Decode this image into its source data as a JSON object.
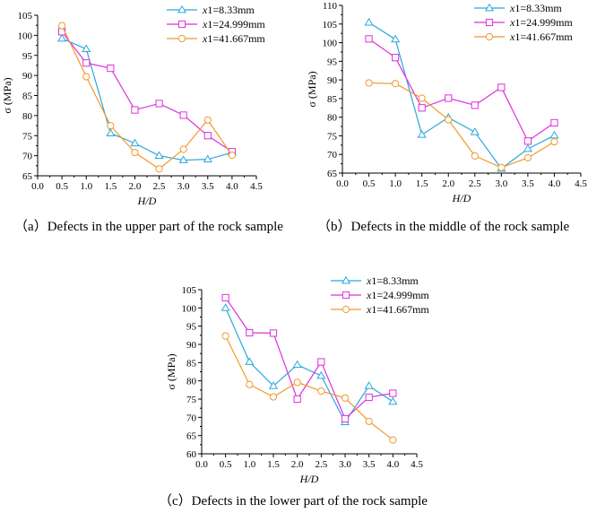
{
  "colors": {
    "s1": "#2aa8dc",
    "s2": "#de2fde",
    "s3": "#f2982b",
    "axis": "#000000"
  },
  "legend": {
    "var": "x",
    "labels": [
      "1=8.33mm",
      "1=24.999mm",
      "1=41.667mm"
    ]
  },
  "chart_data": [
    {
      "type": "line",
      "xlabel": "H/D",
      "ylabel": "σ (MPa)",
      "xlim": [
        0.0,
        4.5
      ],
      "ylim": [
        65,
        105
      ],
      "xticks": [
        "0.0",
        "0.5",
        "1.0",
        "1.5",
        "2.0",
        "2.5",
        "3.0",
        "3.5",
        "4.0",
        "4.5"
      ],
      "yticks": [
        "65",
        "70",
        "75",
        "80",
        "85",
        "90",
        "95",
        "100",
        "105"
      ],
      "x": [
        0.5,
        1.0,
        1.5,
        2.0,
        2.5,
        3.0,
        3.5,
        4.0
      ],
      "series": [
        {
          "name": "x1=8.33mm",
          "marker": "triangle",
          "values": [
            99.2,
            96.6,
            75.6,
            73.1,
            70.0,
            68.9,
            69.1,
            70.8
          ]
        },
        {
          "name": "x1=24.999mm",
          "marker": "square",
          "values": [
            100.9,
            93.1,
            91.8,
            81.4,
            83.0,
            80.1,
            75.0,
            71.0
          ]
        },
        {
          "name": "x1=41.667mm",
          "marker": "circle",
          "values": [
            102.4,
            89.7,
            77.5,
            70.8,
            66.7,
            71.6,
            78.9,
            70.1
          ]
        }
      ],
      "caption": "（a）Defects in the upper part of the rock sample"
    },
    {
      "type": "line",
      "xlabel": "H/D",
      "ylabel": "σ (MPa)",
      "xlim": [
        0.0,
        4.5
      ],
      "ylim": [
        65,
        110
      ],
      "xticks": [
        "0.0",
        "0.5",
        "1.0",
        "1.5",
        "2.0",
        "2.5",
        "3.0",
        "3.5",
        "4.0",
        "4.5"
      ],
      "yticks": [
        "65",
        "70",
        "75",
        "80",
        "85",
        "90",
        "95",
        "100",
        "105",
        "110"
      ],
      "x": [
        0.5,
        1.0,
        1.5,
        2.0,
        2.5,
        3.0,
        3.5,
        4.0
      ],
      "series": [
        {
          "name": "x1=8.33mm",
          "marker": "triangle",
          "values": [
            105.4,
            100.9,
            75.3,
            79.9,
            76.0,
            66.2,
            71.5,
            75.1
          ]
        },
        {
          "name": "x1=24.999mm",
          "marker": "square",
          "values": [
            101.0,
            96.0,
            82.5,
            85.1,
            83.2,
            88.0,
            73.6,
            78.5
          ]
        },
        {
          "name": "x1=41.667mm",
          "marker": "circle",
          "values": [
            89.2,
            89.0,
            85.1,
            79.3,
            69.6,
            66.5,
            69.1,
            73.4
          ]
        }
      ],
      "caption": "（b）Defects in the middle of the rock sample"
    },
    {
      "type": "line",
      "xlabel": "H/D",
      "ylabel": "σ (MPa)",
      "xlim": [
        0.0,
        4.5
      ],
      "ylim": [
        60,
        105
      ],
      "xticks": [
        "0.0",
        "0.5",
        "1.0",
        "1.5",
        "2.0",
        "2.5",
        "3.0",
        "3.5",
        "4.0",
        "4.5"
      ],
      "yticks": [
        "60",
        "65",
        "70",
        "75",
        "80",
        "85",
        "90",
        "95",
        "100",
        "105"
      ],
      "x": [
        0.5,
        1.0,
        1.5,
        2.0,
        2.5,
        3.0,
        3.5,
        4.0
      ],
      "series": [
        {
          "name": "x1=8.33mm",
          "marker": "triangle",
          "values": [
            100.0,
            85.2,
            78.6,
            84.4,
            81.4,
            68.7,
            78.6,
            74.3
          ]
        },
        {
          "name": "x1=24.999mm",
          "marker": "square",
          "values": [
            102.8,
            93.2,
            93.1,
            75.0,
            85.2,
            69.6,
            75.5,
            76.6
          ]
        },
        {
          "name": "x1=41.667mm",
          "marker": "circle",
          "values": [
            92.3,
            79.0,
            75.6,
            79.6,
            77.2,
            75.3,
            68.9,
            63.8
          ]
        }
      ],
      "caption": "（c）Defects in the lower part of the rock sample"
    }
  ]
}
